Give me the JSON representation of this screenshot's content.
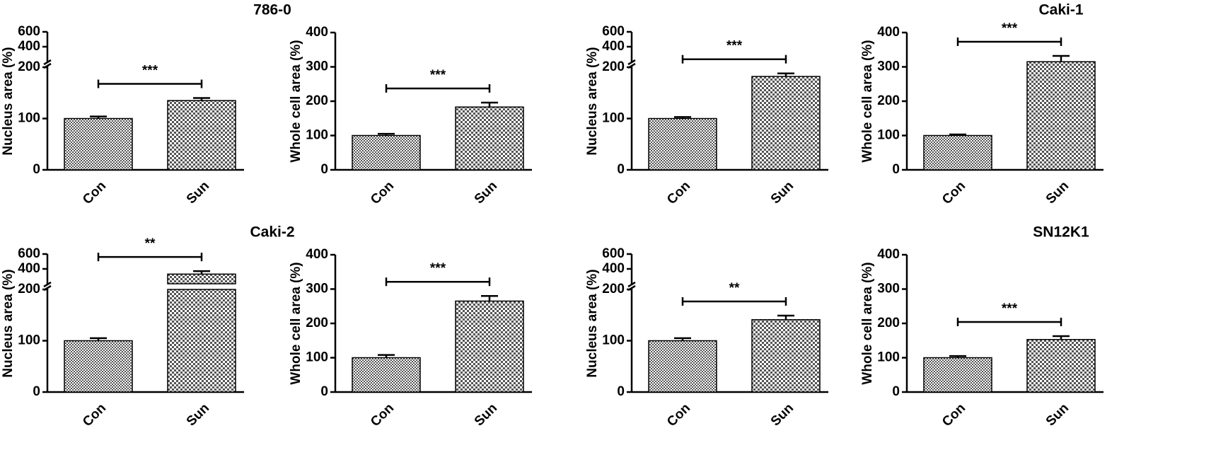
{
  "chart_data": [
    {
      "type": "bar",
      "title": "786-0",
      "ylabel": "Nucleus area (%)",
      "categories": [
        "Con",
        "Sun"
      ],
      "values": [
        100,
        135
      ],
      "errors": [
        4,
        5
      ],
      "ylim": [
        0,
        600
      ],
      "ybreak": 200,
      "yticks": [
        0,
        100,
        200,
        400,
        600
      ],
      "color": "#555555",
      "significance": "***"
    },
    {
      "type": "bar",
      "ylabel": "Whole cell area (%)",
      "categories": [
        "Con",
        "Sun"
      ],
      "values": [
        100,
        183
      ],
      "errors": [
        5,
        13
      ],
      "ylim": [
        0,
        400
      ],
      "yticks": [
        0,
        100,
        200,
        300,
        400
      ],
      "color": "#555555",
      "significance": "***"
    },
    {
      "type": "bar",
      "title": "Caki-1",
      "ylabel": "Nucleus area (%)",
      "categories": [
        "Con",
        "Sun"
      ],
      "values": [
        100,
        182
      ],
      "errors": [
        3,
        6
      ],
      "ylim": [
        0,
        600
      ],
      "ybreak": 200,
      "yticks": [
        0,
        100,
        200,
        400,
        600
      ],
      "color": "#555555",
      "significance": "***"
    },
    {
      "type": "bar",
      "ylabel": "Whole cell area (%)",
      "categories": [
        "Con",
        "Sun"
      ],
      "values": [
        100,
        315
      ],
      "errors": [
        3,
        17
      ],
      "ylim": [
        0,
        400
      ],
      "yticks": [
        0,
        100,
        200,
        300,
        400
      ],
      "color": "#555555",
      "significance": "***"
    },
    {
      "type": "bar",
      "title": "Caki-2",
      "ylabel": "Nucleus area (%)",
      "categories": [
        "Con",
        "Sun"
      ],
      "values": [
        100,
        330
      ],
      "errors": [
        5,
        40
      ],
      "ylim": [
        0,
        600
      ],
      "ybreak": 200,
      "yticks": [
        0,
        100,
        200,
        400,
        600
      ],
      "color": "#555555",
      "significance": "**"
    },
    {
      "type": "bar",
      "ylabel": "Whole cell area (%)",
      "categories": [
        "Con",
        "Sun"
      ],
      "values": [
        100,
        265
      ],
      "errors": [
        8,
        15
      ],
      "ylim": [
        0,
        400
      ],
      "yticks": [
        0,
        100,
        200,
        300,
        400
      ],
      "color": "#555555",
      "significance": "***"
    },
    {
      "type": "bar",
      "title": "SN12K1",
      "ylabel": "Nucleus area (%)",
      "categories": [
        "Con",
        "Sun"
      ],
      "values": [
        100,
        141
      ],
      "errors": [
        5,
        8
      ],
      "ylim": [
        0,
        600
      ],
      "ybreak": 200,
      "yticks": [
        0,
        100,
        200,
        400,
        600
      ],
      "color": "#555555",
      "significance": "**"
    },
    {
      "type": "bar",
      "ylabel": "Whole cell area (%)",
      "categories": [
        "Con",
        "Sun"
      ],
      "values": [
        100,
        153
      ],
      "errors": [
        5,
        10
      ],
      "ylim": [
        0,
        400
      ],
      "yticks": [
        0,
        100,
        200,
        300,
        400
      ],
      "color": "#555555",
      "significance": "***"
    }
  ]
}
